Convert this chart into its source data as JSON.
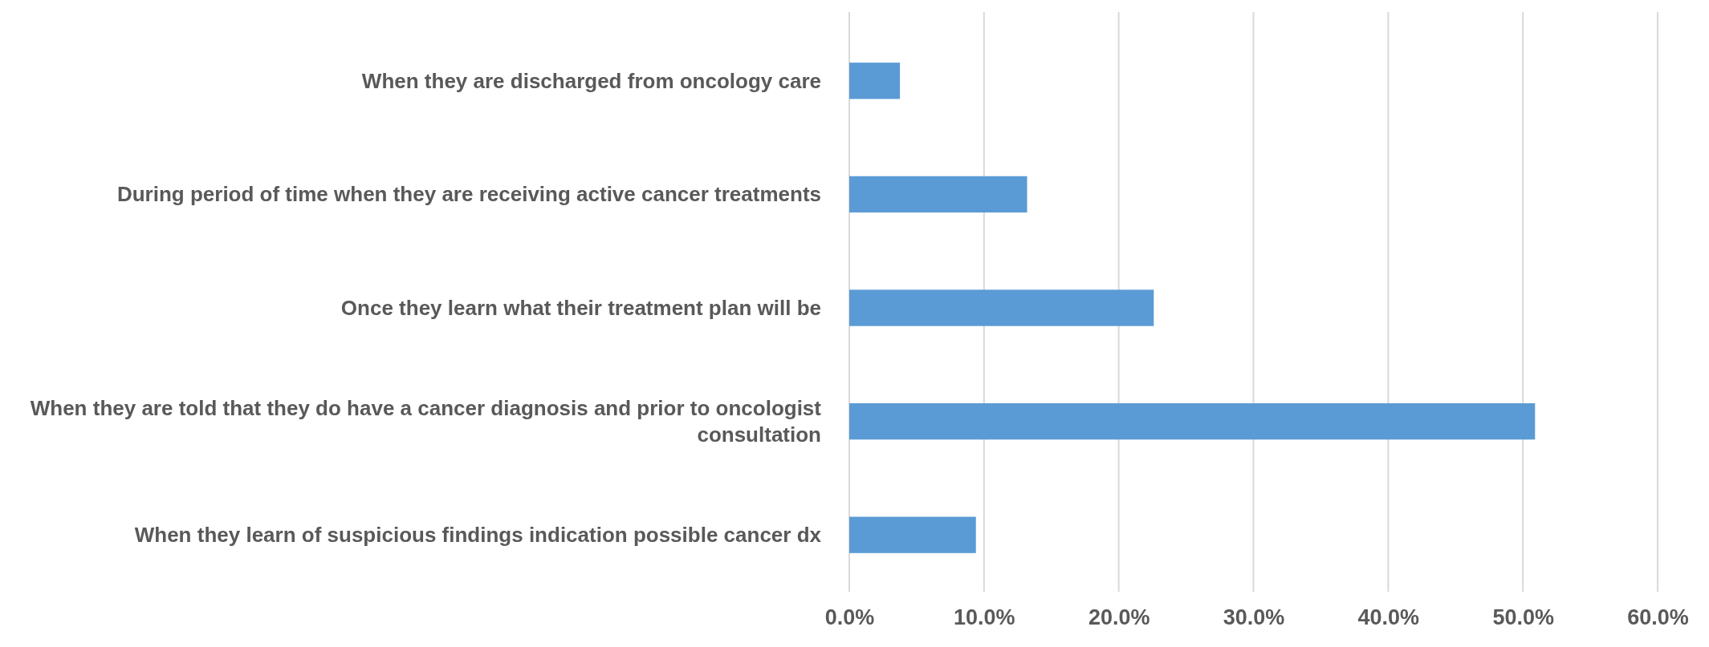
{
  "chart_data": {
    "type": "bar",
    "orientation": "horizontal",
    "categories": [
      "When they are discharged from oncology care",
      "During period of time when they are receiving active cancer treatments",
      "Once they learn what their treatment plan will be",
      "When they are told that they do have a cancer diagnosis and prior to oncologist consultation",
      "When they learn of suspicious findings indication possible cancer dx"
    ],
    "values": [
      3.76,
      13.2,
      22.6,
      50.9,
      9.4
    ],
    "color": "#5b9bd5",
    "xlim": [
      0,
      60
    ],
    "xticks": [
      {
        "value": 0,
        "label": "0.0%"
      },
      {
        "value": 10,
        "label": "10.0%"
      },
      {
        "value": 20,
        "label": "20.0%"
      },
      {
        "value": 30,
        "label": "30.0%"
      },
      {
        "value": 40,
        "label": "40.0%"
      },
      {
        "value": 50,
        "label": "50.0%"
      },
      {
        "value": 60,
        "label": "60.0%"
      }
    ],
    "grid": "x"
  }
}
